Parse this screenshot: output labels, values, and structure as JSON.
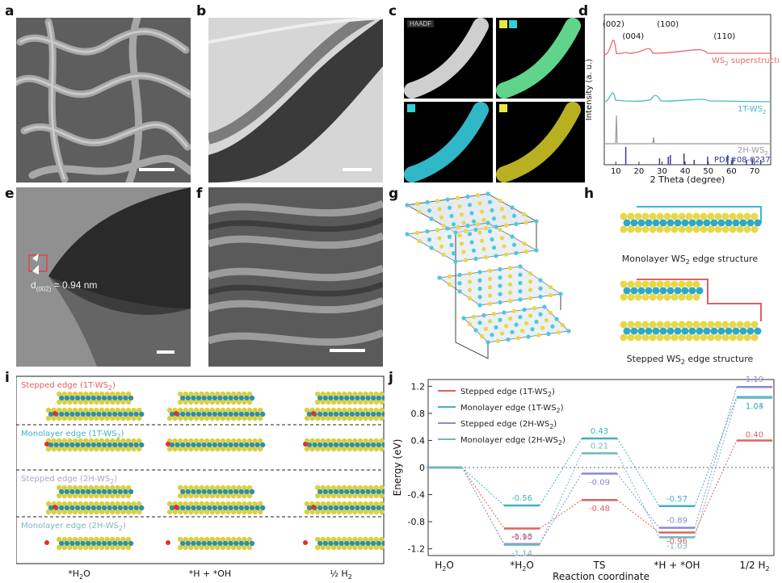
{
  "labels": {
    "a": "a",
    "b": "b",
    "c": "c",
    "d": "d",
    "e": "e",
    "f": "f",
    "g": "g",
    "h": "h",
    "i": "i",
    "j": "j"
  },
  "panel_c": {
    "haadf": "HAADF"
  },
  "panel_e": {
    "spacing_label": "d",
    "spacing_sub": "(002)",
    "spacing_value": "= 0.94 nm"
  },
  "panel_h": {
    "top_caption": "Monolayer WS",
    "top_caption_sub": "2",
    "top_caption_tail": " edge structure",
    "bottom_caption": "Stepped WS",
    "bottom_caption_sub": "2",
    "bottom_caption_tail": " edge structure"
  },
  "panel_i": {
    "rows": [
      {
        "label": "Stepped edge (1T-WS",
        "sub": "2",
        "tail": ")",
        "color": "#e06060"
      },
      {
        "label": "Monolayer edge (1T-WS",
        "sub": "2",
        "tail": ")",
        "color": "#3fb0c8"
      },
      {
        "label": "Stepped edge (2H-WS",
        "sub": "2",
        "tail": ")",
        "color": "#a6a6c8"
      },
      {
        "label": "Monolayer edge (2H-WS",
        "sub": "2",
        "tail": ")",
        "color": "#7ab8c4"
      }
    ],
    "columns": [
      {
        "main": "*H",
        "sub": "2",
        "tail": "O"
      },
      {
        "main": "*H + *OH",
        "sub": "",
        "tail": ""
      },
      {
        "main": "½ H",
        "sub": "2",
        "tail": ""
      }
    ]
  },
  "chart_data": [
    {
      "id": "d",
      "type": "line",
      "xlabel": "2 Theta (degree)",
      "ylabel": "Intensity (a. u.)",
      "xlim": [
        5,
        77
      ],
      "xticks": [
        10,
        20,
        30,
        40,
        50,
        60,
        70
      ],
      "peaks": [
        {
          "label": "(002)",
          "x": 9.0
        },
        {
          "label": "(004)",
          "x": 17.5
        },
        {
          "label": "(100)",
          "x": 32.5
        },
        {
          "label": "(110)",
          "x": 57.0
        }
      ],
      "series": [
        {
          "name": "WS",
          "name_sub": "2",
          "name_tail": " superstructure",
          "color": "#e86a6a"
        },
        {
          "name": "1T-WS",
          "name_sub": "2",
          "name_tail": "",
          "color": "#46b8c8"
        },
        {
          "name": "2H-WS",
          "name_sub": "2",
          "name_tail": "",
          "color": "#9a9a9a"
        },
        {
          "name": "PDF#08-0237",
          "name_sub": "",
          "name_tail": "",
          "color": "#3b3b9e"
        }
      ]
    },
    {
      "id": "j",
      "type": "line",
      "xlabel": "Reaction coordinate",
      "ylabel": "Energy (eV)",
      "ylim": [
        -1.3,
        1.3
      ],
      "yticks": [
        -1.2,
        -0.8,
        -0.4,
        0,
        0.4,
        0.8,
        1.2
      ],
      "categories": [
        {
          "main": "H",
          "sub": "2",
          "tail": "O"
        },
        {
          "main": "*H",
          "sub": "2",
          "tail": "O"
        },
        {
          "main": "TS",
          "sub": "",
          "tail": ""
        },
        {
          "main": "*H + *OH",
          "sub": "",
          "tail": ""
        },
        {
          "main": "1/2 H",
          "sub": "2",
          "tail": ""
        }
      ],
      "series": [
        {
          "name": "Stepped edge (1T-WS",
          "sub": "2",
          "tail": ")",
          "color": "#e06060",
          "values": [
            0,
            -0.9,
            -0.48,
            -0.96,
            0.4
          ],
          "labels": [
            "",
            "-0.90",
            "-0.48",
            "-0.96",
            "0.40"
          ]
        },
        {
          "name": "Monolayer edge (1T-WS",
          "sub": "2",
          "tail": ")",
          "color": "#3fb0c8",
          "values": [
            0,
            -0.56,
            0.43,
            -0.57,
            1.04
          ],
          "labels": [
            "",
            "-0.56",
            "0.43",
            "-0.57",
            "1.04"
          ]
        },
        {
          "name": "Stepped edge (2H-WS",
          "sub": "2",
          "tail": ")",
          "color": "#8a8ad0",
          "values": [
            0,
            -1.13,
            -0.09,
            -0.89,
            1.19
          ],
          "labels": [
            "",
            "-1.13",
            "-0.09",
            "-0.89",
            "1.19"
          ]
        },
        {
          "name": "Monolayer edge (2H-WS",
          "sub": "2",
          "tail": ")",
          "color": "#70b8b8",
          "values": [
            0,
            -1.14,
            0.21,
            -1.03,
            1.03
          ],
          "labels": [
            "",
            "-1.14",
            "0.21",
            "-1.03",
            "1.03"
          ]
        }
      ]
    }
  ]
}
